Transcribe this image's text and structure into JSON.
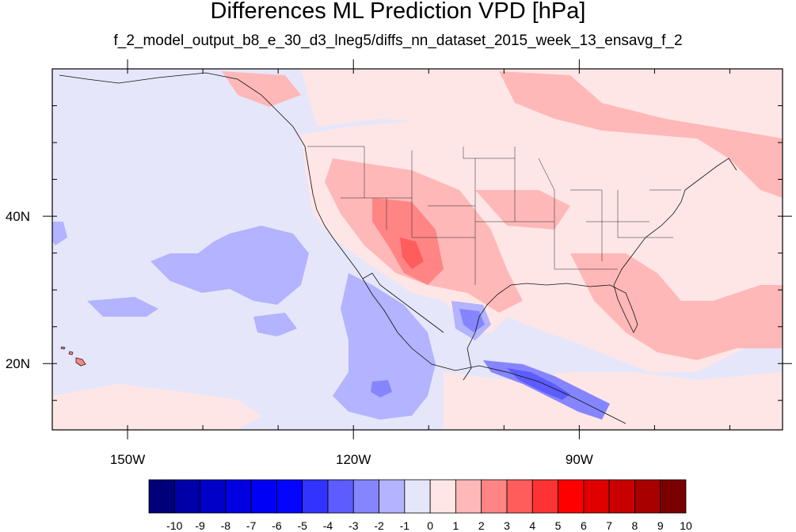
{
  "title": "Differences ML Prediction VPD [hPa]",
  "subtitle": "f_2_model_output_b8_e_30_d3_lneg5/diffs_nn_dataset_2015_week_13_ensavg_f_2",
  "map": {
    "lon_range": [
      -160,
      -63
    ],
    "lat_range": [
      11,
      60
    ],
    "x_ticks": [
      {
        "lon": -150,
        "label": "150W"
      },
      {
        "lon": -120,
        "label": "120W"
      },
      {
        "lon": -90,
        "label": "90W"
      }
    ],
    "y_ticks": [
      {
        "lat": 20,
        "label": "20N"
      },
      {
        "lat": 40,
        "label": "40N"
      }
    ]
  },
  "colorbar": {
    "labels": [
      "-10",
      "-9",
      "-8",
      "-7",
      "-6",
      "-5",
      "-4",
      "-3",
      "-2",
      "-1",
      "0",
      "1",
      "2",
      "3",
      "4",
      "5",
      "6",
      "7",
      "8",
      "9",
      "10"
    ],
    "colors": [
      "#00007a",
      "#0000a8",
      "#0000c8",
      "#0000e0",
      "#0000f5",
      "#0505ff",
      "#3333ff",
      "#5c5cff",
      "#8585ff",
      "#b3b3ff",
      "#e6e6fa",
      "#ffe6e6",
      "#ffb8b8",
      "#ff8585",
      "#ff5c5c",
      "#ff3333",
      "#ff0000",
      "#e00000",
      "#c80000",
      "#a80000",
      "#7a0000"
    ]
  }
}
